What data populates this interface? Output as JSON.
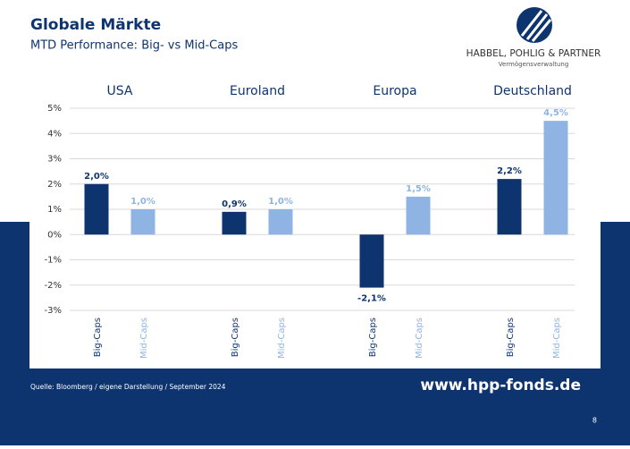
{
  "header": {
    "title": "Globale Märkte",
    "subtitle": "MTD Performance: Big- vs Mid-Caps",
    "company": "HABBEL, POHLIG & PARTNER",
    "company_sub": "Vermögensverwaltung"
  },
  "chart_data": {
    "type": "bar",
    "categories": [
      "USA",
      "Euroland",
      "Europa",
      "Deutschland"
    ],
    "series": [
      {
        "name": "Big-Caps",
        "color": "#0e3470",
        "values": [
          2.0,
          0.9,
          -2.1,
          2.2
        ],
        "value_labels": [
          "2,0%",
          "0,9%",
          "-2,1%",
          "2,2%"
        ]
      },
      {
        "name": "Mid-Caps",
        "color": "#8fb4e3",
        "values": [
          1.0,
          1.0,
          1.5,
          4.5
        ],
        "value_labels": [
          "1,0%",
          "1,0%",
          "1,5%",
          "4,5%"
        ]
      }
    ],
    "ylim": [
      -3,
      5
    ],
    "yticks": [
      {
        "value": -3,
        "label": "-3%"
      },
      {
        "value": -2,
        "label": "-2%"
      },
      {
        "value": -1,
        "label": "-1%"
      },
      {
        "value": 0,
        "label": "0%"
      },
      {
        "value": 1,
        "label": "1%"
      },
      {
        "value": 2,
        "label": "2%"
      },
      {
        "value": 3,
        "label": "3%"
      },
      {
        "value": 4,
        "label": "4%"
      },
      {
        "value": 5,
        "label": "5%"
      }
    ],
    "grid": true
  },
  "footer": {
    "source": "Quelle: Bloomberg / eigene Darstellung / September 2024",
    "url": "www.hpp-fonds.de",
    "page": "8"
  }
}
